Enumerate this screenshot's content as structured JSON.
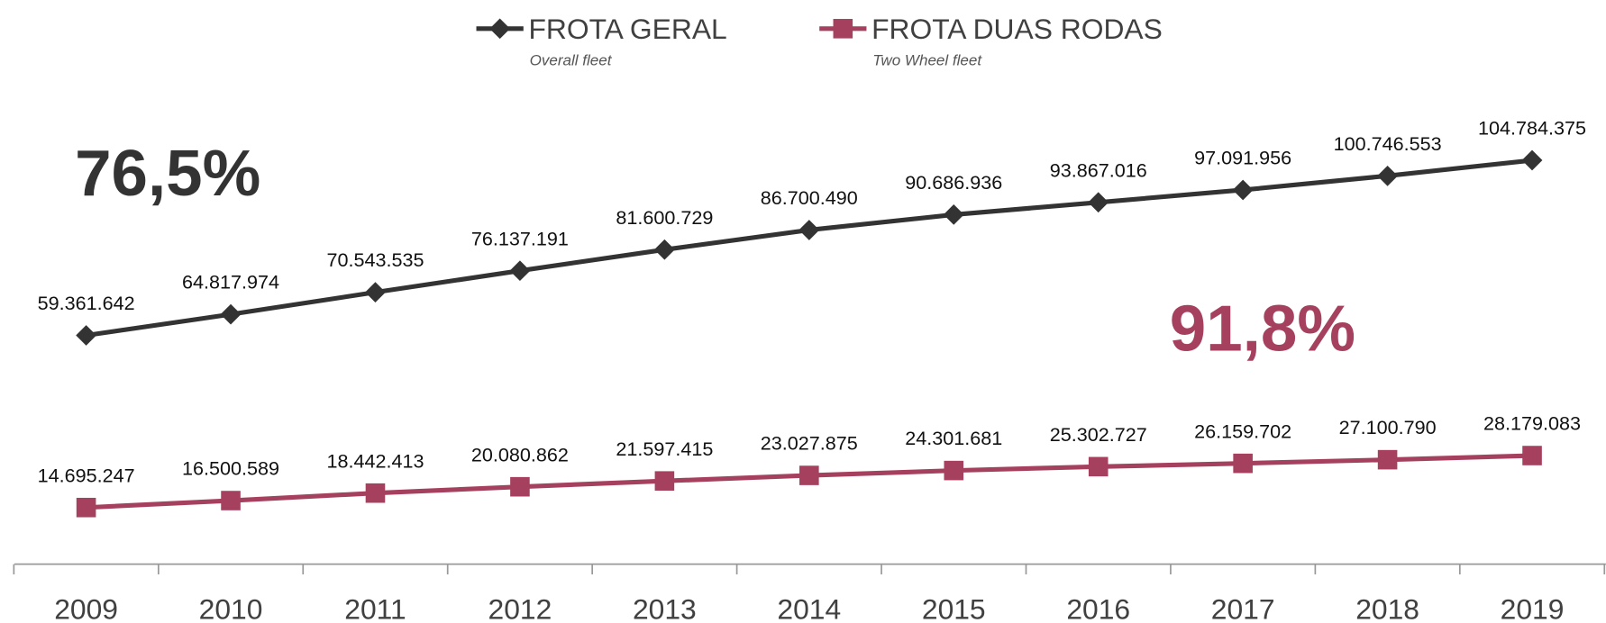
{
  "chart_data": {
    "type": "line",
    "categories": [
      "2009",
      "2010",
      "2011",
      "2012",
      "2013",
      "2014",
      "2015",
      "2016",
      "2017",
      "2018",
      "2019"
    ],
    "series": [
      {
        "name": "FROTA GERAL",
        "description": "Overall fleet",
        "color": "#333333",
        "marker": "diamond",
        "values": [
          59361642,
          64817974,
          70543535,
          76137191,
          81600729,
          86700490,
          90686936,
          93867016,
          97091956,
          100746553,
          104784375
        ],
        "value_labels": [
          "59.361.642",
          "64.817.974",
          "70.543.535",
          "76.137.191",
          "81.600.729",
          "86.700.490",
          "90.686.936",
          "93.867.016",
          "97.091.956",
          "100.746.553",
          "104.784.375"
        ]
      },
      {
        "name": "FROTA DUAS RODAS",
        "description": "Two Wheel fleet",
        "color": "#a5415e",
        "marker": "square",
        "values": [
          14695247,
          16500589,
          18442413,
          20080862,
          21597415,
          23027875,
          24301681,
          25302727,
          26159702,
          27100790,
          28179083
        ],
        "value_labels": [
          "14.695.247",
          "16.500.589",
          "18.442.413",
          "20.080.862",
          "21.597.415",
          "23.027.875",
          "24.301.681",
          "25.302.727",
          "26.159.702",
          "27.100.790",
          "28.179.083"
        ]
      }
    ],
    "annotations": [
      "76,5%",
      "91,8%"
    ],
    "ylim": [
      0,
      140000000
    ]
  }
}
